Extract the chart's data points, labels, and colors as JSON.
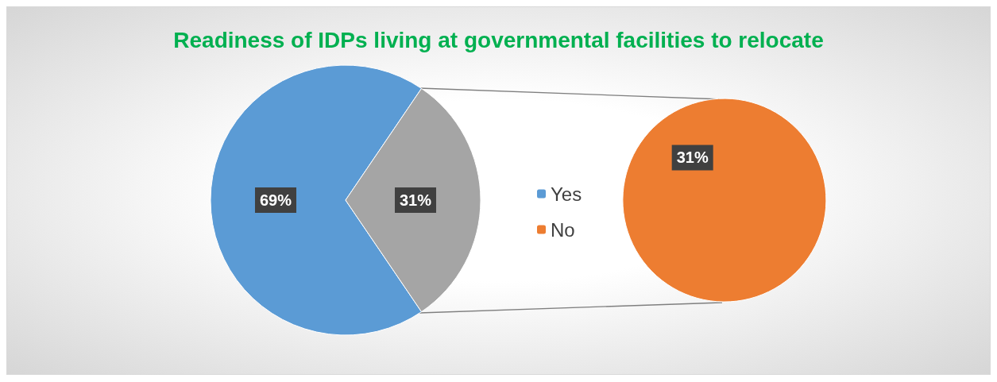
{
  "chart_data": [
    {
      "type": "pie",
      "title": "Readiness of IDPs living at governmental facilities to relocate",
      "categories": [
        "Yes",
        null
      ],
      "values": [
        69,
        31
      ],
      "value_labels": [
        "69%",
        "31%"
      ],
      "colors": [
        "#5b9bd5",
        "#a5a5a5"
      ],
      "legend": "right"
    },
    {
      "type": "pie",
      "categories": [
        "No"
      ],
      "values": [
        31
      ],
      "value_labels": [
        "31%"
      ],
      "colors": [
        "#ed7d31"
      ],
      "legend": "left"
    }
  ]
}
